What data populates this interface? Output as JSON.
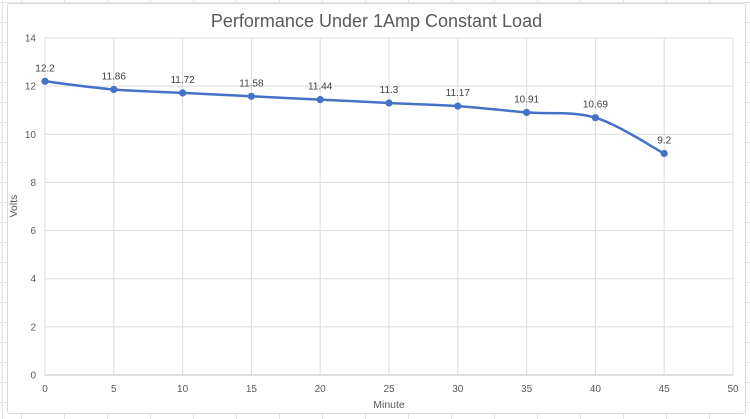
{
  "chart_data": {
    "type": "line",
    "title": "Performance Under 1Amp Constant Load",
    "xlabel": "Minute",
    "ylabel": "Volts",
    "x": [
      0,
      5,
      10,
      15,
      20,
      25,
      30,
      35,
      40,
      45
    ],
    "values": [
      12.2,
      11.86,
      11.72,
      11.58,
      11.44,
      11.3,
      11.17,
      10.91,
      10.69,
      9.2
    ],
    "data_labels": [
      "12.2",
      "11.86",
      "11.72",
      "11.58",
      "11.44",
      "11.3",
      "11.17",
      "10.91",
      "10.69",
      "9.2"
    ],
    "series_name": "Volts",
    "xlim": [
      0,
      50
    ],
    "ylim": [
      0,
      14
    ],
    "x_ticks": [
      0,
      5,
      10,
      15,
      20,
      25,
      30,
      35,
      40,
      45,
      50
    ],
    "y_ticks": [
      0,
      2,
      4,
      6,
      8,
      10,
      12,
      14
    ],
    "grid": true,
    "smoothed_line": true,
    "legend": "none",
    "colors": {
      "line": "#4472C4",
      "marker": "#4472C4",
      "title_text": "#595959",
      "axis_text": "#595959",
      "data_label_text": "#404040",
      "gridline": "#dcdcdc",
      "axis_line": "#bfbfbf",
      "chart_border": "#d9d9d9"
    }
  }
}
